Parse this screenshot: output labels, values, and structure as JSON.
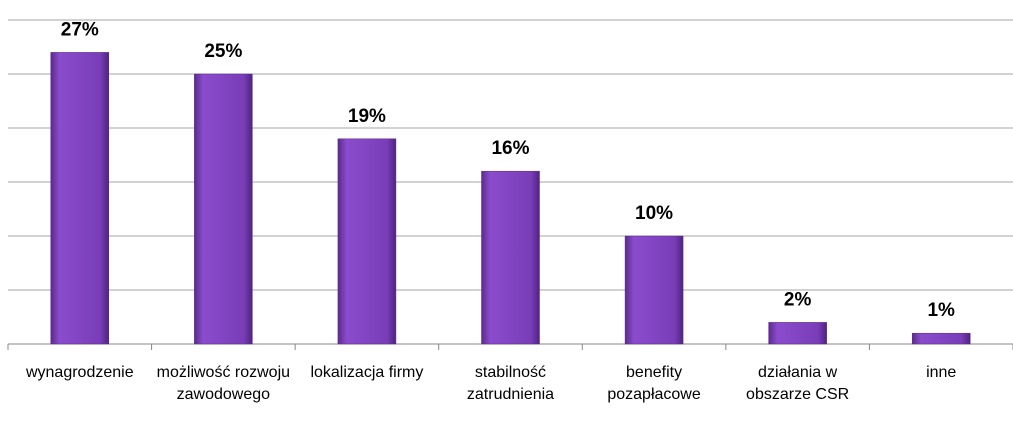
{
  "chart_data": {
    "type": "bar",
    "categories": [
      "wynagrodzenie",
      "możliwość rozwoju zawodowego",
      "lokalizacja firmy",
      "stabilność zatrudnienia",
      "benefity pozapłacowe",
      "działania w obszarze CSR",
      "inne"
    ],
    "values": [
      27,
      25,
      19,
      16,
      10,
      2,
      1
    ],
    "value_labels": [
      "27%",
      "25%",
      "19%",
      "16%",
      "10%",
      "2%",
      "1%"
    ],
    "color": "#7a3db8",
    "ylim": [
      0,
      30
    ],
    "yticks": [
      0,
      5,
      10,
      15,
      20,
      25,
      30
    ],
    "grid": true
  }
}
